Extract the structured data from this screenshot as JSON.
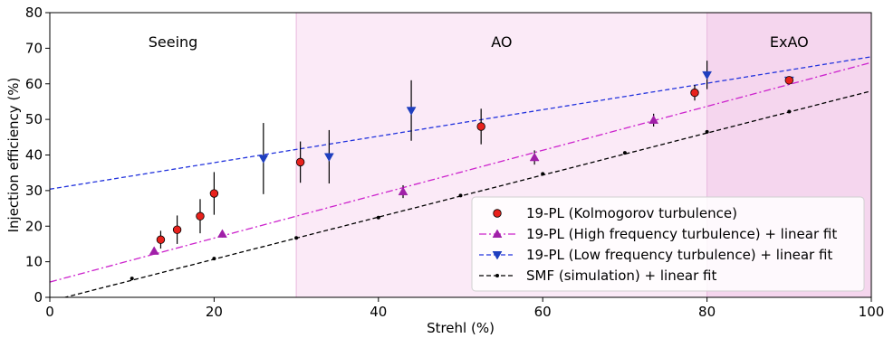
{
  "chart_data": {
    "type": "scatter",
    "xlabel": "Strehl (%)",
    "ylabel": "Injection efficiency (%)",
    "xlim": [
      0,
      100
    ],
    "ylim": [
      0,
      80
    ],
    "x_ticks": [
      0,
      20,
      40,
      60,
      80,
      100
    ],
    "y_ticks": [
      0,
      10,
      20,
      30,
      40,
      50,
      60,
      70,
      80
    ],
    "grid": false,
    "legend_position": "lower-right",
    "regions": [
      {
        "label": "Seeing",
        "x_range": [
          0,
          30
        ],
        "color": "#ffffff"
      },
      {
        "label": "AO",
        "x_range": [
          30,
          80
        ],
        "color": "#fbeaf7"
      },
      {
        "label": "ExAO",
        "x_range": [
          80,
          100
        ],
        "color": "#f5d6ee"
      }
    ],
    "series": [
      {
        "name": "19-PL (Kolmogorov turbulence)",
        "marker": "circle",
        "color": "#e8211c",
        "x": [
          13.5,
          15.5,
          18.3,
          20.0,
          30.5,
          52.5,
          78.5,
          90.0
        ],
        "y": [
          16.2,
          19.0,
          22.8,
          29.2,
          38.0,
          48.0,
          57.5,
          61.0
        ],
        "err": [
          2.5,
          4.0,
          4.8,
          6.0,
          5.8,
          5.0,
          2.2,
          0.6
        ]
      },
      {
        "name": "19-PL (High frequency turbulence) + linear fit",
        "marker": "triangle-up",
        "color": "#a020a8",
        "x": [
          12.7,
          21.0,
          43.0,
          59.0,
          73.5
        ],
        "y": [
          13.0,
          17.8,
          29.7,
          39.3,
          49.8
        ],
        "err": [
          0.8,
          1.0,
          1.8,
          2.0,
          1.8
        ],
        "fit": {
          "slope": 0.617,
          "intercept": 4.3,
          "color": "#cc22cc",
          "style": "dashdot"
        }
      },
      {
        "name": "19-PL (Low frequency turbulence) + linear fit",
        "marker": "triangle-down",
        "color": "#1f3fbf",
        "x": [
          26.0,
          34.0,
          44.0,
          80.0,
          90.0
        ],
        "y": [
          39.0,
          39.5,
          52.5,
          62.5,
          61.0
        ],
        "err": [
          10.0,
          7.5,
          8.5,
          4.0,
          0.6
        ],
        "fit": {
          "slope": 0.372,
          "intercept": 30.4,
          "color": "#2233dd",
          "style": "dashed"
        }
      },
      {
        "name": "SMF (simulation) + linear fit",
        "marker": "point",
        "color": "#000000",
        "x": [
          10,
          20,
          30,
          40,
          50,
          60,
          70,
          80,
          90
        ],
        "y": [
          5.3,
          10.9,
          16.7,
          22.4,
          28.6,
          34.7,
          40.6,
          46.5,
          52.2
        ],
        "err": [],
        "fit": {
          "slope": 0.591,
          "intercept": -1.1,
          "color": "#000000",
          "style": "dashed"
        }
      }
    ]
  }
}
